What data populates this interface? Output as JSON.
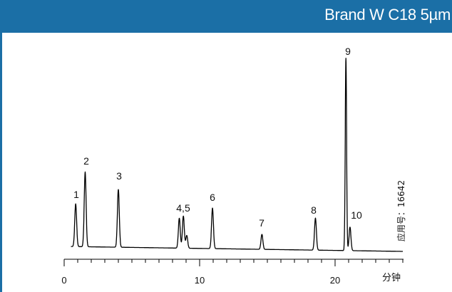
{
  "header": {
    "title": "Brand W C18 5µm",
    "color": "#1b6fa6"
  },
  "chart_data": {
    "type": "line",
    "title": "Brand W C18 5µm",
    "xlabel": "分钟",
    "ylabel": "",
    "xlim": [
      0,
      25
    ],
    "xticks": [
      0,
      10,
      20
    ],
    "xtick_labels": [
      "0",
      "10",
      "20"
    ],
    "grid": false,
    "series": [
      {
        "peaks": [
          {
            "label": "1",
            "rt": 0.85,
            "height": 0.2
          },
          {
            "label": "2",
            "rt": 1.55,
            "height": 0.35
          },
          {
            "label": "3",
            "rt": 4.0,
            "height": 0.27
          },
          {
            "label": "4,5",
            "rt": 8.5,
            "height": 0.14
          },
          {
            "label": "",
            "rt": 8.8,
            "height": 0.15
          },
          {
            "label": "",
            "rt": 9.05,
            "height": 0.06
          },
          {
            "label": "6",
            "rt": 10.95,
            "height": 0.19
          },
          {
            "label": "7",
            "rt": 14.6,
            "height": 0.07
          },
          {
            "label": "8",
            "rt": 18.55,
            "height": 0.15
          },
          {
            "label": "9",
            "rt": 20.8,
            "height": 0.9
          },
          {
            "label": "10",
            "rt": 21.1,
            "height": 0.11
          }
        ]
      }
    ],
    "annotation": "应用号：16642"
  },
  "labels": {
    "peak_1": "1",
    "peak_2": "2",
    "peak_3": "3",
    "peak_45": "4,5",
    "peak_6": "6",
    "peak_7": "7",
    "peak_8": "8",
    "peak_9": "9",
    "peak_10": "10",
    "tick_0": "0",
    "tick_10": "10",
    "tick_20": "20",
    "x_unit": "分钟",
    "app_number": "应用号：16642"
  }
}
